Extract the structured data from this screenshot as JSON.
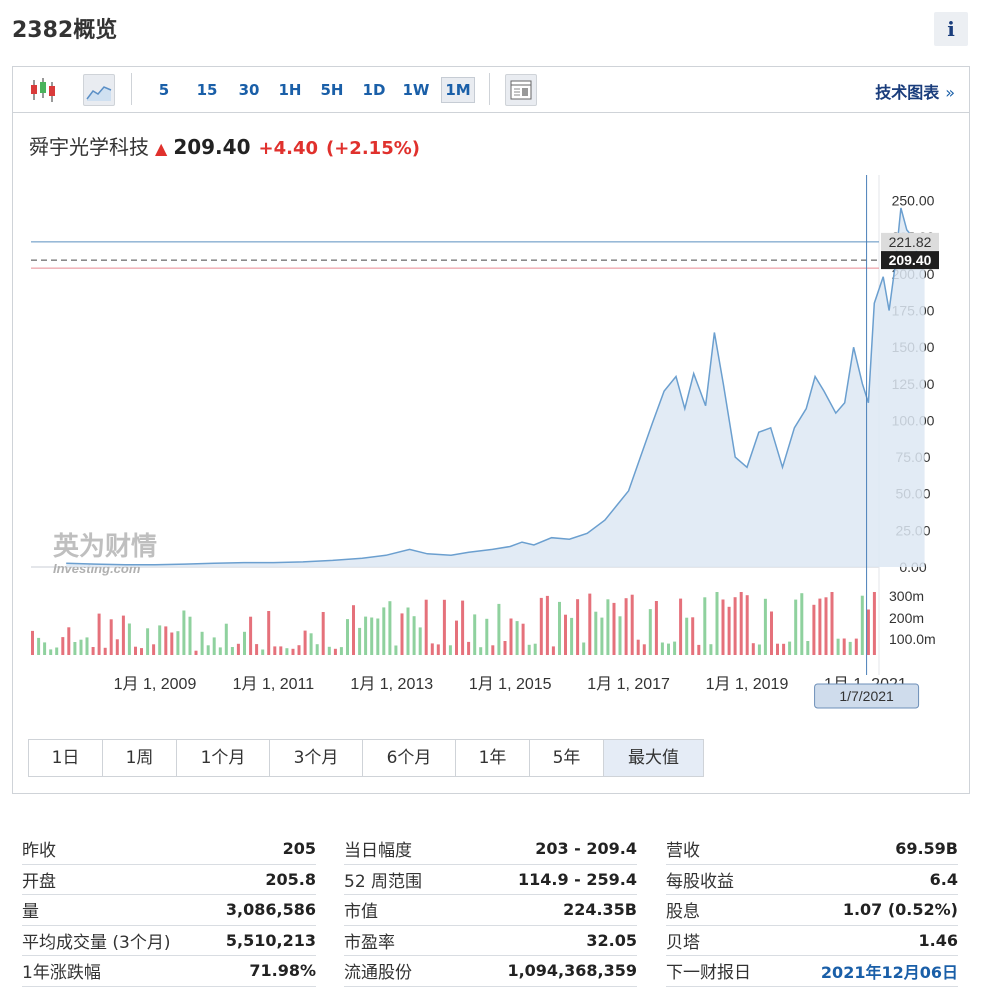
{
  "page": {
    "title": "2382概览",
    "info_label": "i"
  },
  "toolbar": {
    "timeframes": [
      "5",
      "15",
      "30",
      "1H",
      "5H",
      "1D",
      "1W",
      "1M"
    ],
    "active_timeframe": "1M",
    "tech_chart_label": "技术图表",
    "tech_chart_arrow": "»"
  },
  "quote": {
    "name": "舜宇光学科技",
    "price": "209.40",
    "change": "+4.40",
    "change_pct": "(+2.15%)",
    "direction_icon": "up-arrow-icon",
    "color_up": "#e0312d"
  },
  "watermark": {
    "cn": "英为财情",
    "en": "Investing.com"
  },
  "chart_data": {
    "type": "area",
    "x_ticks": [
      "1月 1, 2009",
      "1月 1, 2011",
      "1月 1, 2013",
      "1月 1, 2015",
      "1月 1, 2017",
      "1月 1, 2019",
      "1月 1, 2021"
    ],
    "y_ticks": [
      "250.00",
      "225.00",
      "200.00",
      "175.00",
      "150.00",
      "125.00",
      "100.00",
      "75.00",
      "50.00",
      "25.00",
      "0.00"
    ],
    "ylim": [
      0,
      262
    ],
    "price_labels": {
      "high_line": "221.82",
      "current": "209.40"
    },
    "crosshair_label": "1/7/2021",
    "price_series": {
      "x": [
        2007.5,
        2008,
        2008.5,
        2009,
        2009.5,
        2010,
        2010.5,
        2011,
        2011.5,
        2012,
        2012.5,
        2012.9,
        2013.3,
        2013.6,
        2014,
        2014.3,
        2014.7,
        2015,
        2015.2,
        2015.4,
        2015.7,
        2016,
        2016.3,
        2016.6,
        2016.8,
        2017,
        2017.2,
        2017.4,
        2017.6,
        2017.8,
        2017.95,
        2018.1,
        2018.3,
        2018.45,
        2018.6,
        2018.8,
        2019,
        2019.2,
        2019.4,
        2019.6,
        2019.8,
        2020,
        2020.15,
        2020.3,
        2020.5,
        2020.65,
        2020.8,
        2020.95,
        2021.05,
        2021.15,
        2021.3,
        2021.4,
        2021.5,
        2021.6,
        2021.7,
        2021.8,
        2021.9,
        2022
      ],
      "values": [
        2.5,
        2,
        1.5,
        1.5,
        2,
        2.5,
        3,
        3,
        3.5,
        4.5,
        6,
        8,
        12,
        9,
        8,
        10,
        12,
        14,
        17,
        15,
        20,
        19,
        23,
        32,
        42,
        52,
        75,
        98,
        120,
        130,
        108,
        132,
        110,
        160,
        125,
        75,
        68,
        92,
        95,
        68,
        95,
        108,
        130,
        120,
        105,
        112,
        150,
        125,
        112,
        180,
        198,
        175,
        205,
        245,
        230,
        225,
        210,
        209.4
      ]
    },
    "volume": {
      "y_ticks": [
        "300m",
        "200m",
        "100.0m"
      ],
      "color_up": "#8fd19e",
      "color_down": "#e5717b"
    }
  },
  "ranges": [
    "1日",
    "1周",
    "1个月",
    "3个月",
    "6个月",
    "1年",
    "5年",
    "最大值"
  ],
  "active_range": "最大值",
  "stats": {
    "col1": [
      {
        "label": "昨收",
        "value": "205"
      },
      {
        "label": "开盘",
        "value": "205.8"
      },
      {
        "label": "量",
        "value": "3,086,586"
      },
      {
        "label": "平均成交量 (3个月)",
        "value": "5,510,213"
      },
      {
        "label": "1年涨跌幅",
        "value": "71.98%"
      }
    ],
    "col2": [
      {
        "label": "当日幅度",
        "value": "203 - 209.4"
      },
      {
        "label": "52 周范围",
        "value": "114.9 - 259.4"
      },
      {
        "label": "市值",
        "value": "224.35B"
      },
      {
        "label": "市盈率",
        "value": "32.05"
      },
      {
        "label": "流通股份",
        "value": "1,094,368,359"
      }
    ],
    "col3": [
      {
        "label": "营收",
        "value": "69.59B"
      },
      {
        "label": "每股收益",
        "value": "6.4"
      },
      {
        "label": "股息",
        "value": "1.07 (0.52%)"
      },
      {
        "label": "贝塔",
        "value": "1.46"
      },
      {
        "label": "下一财报日",
        "value": "2021年12月06日"
      }
    ]
  }
}
